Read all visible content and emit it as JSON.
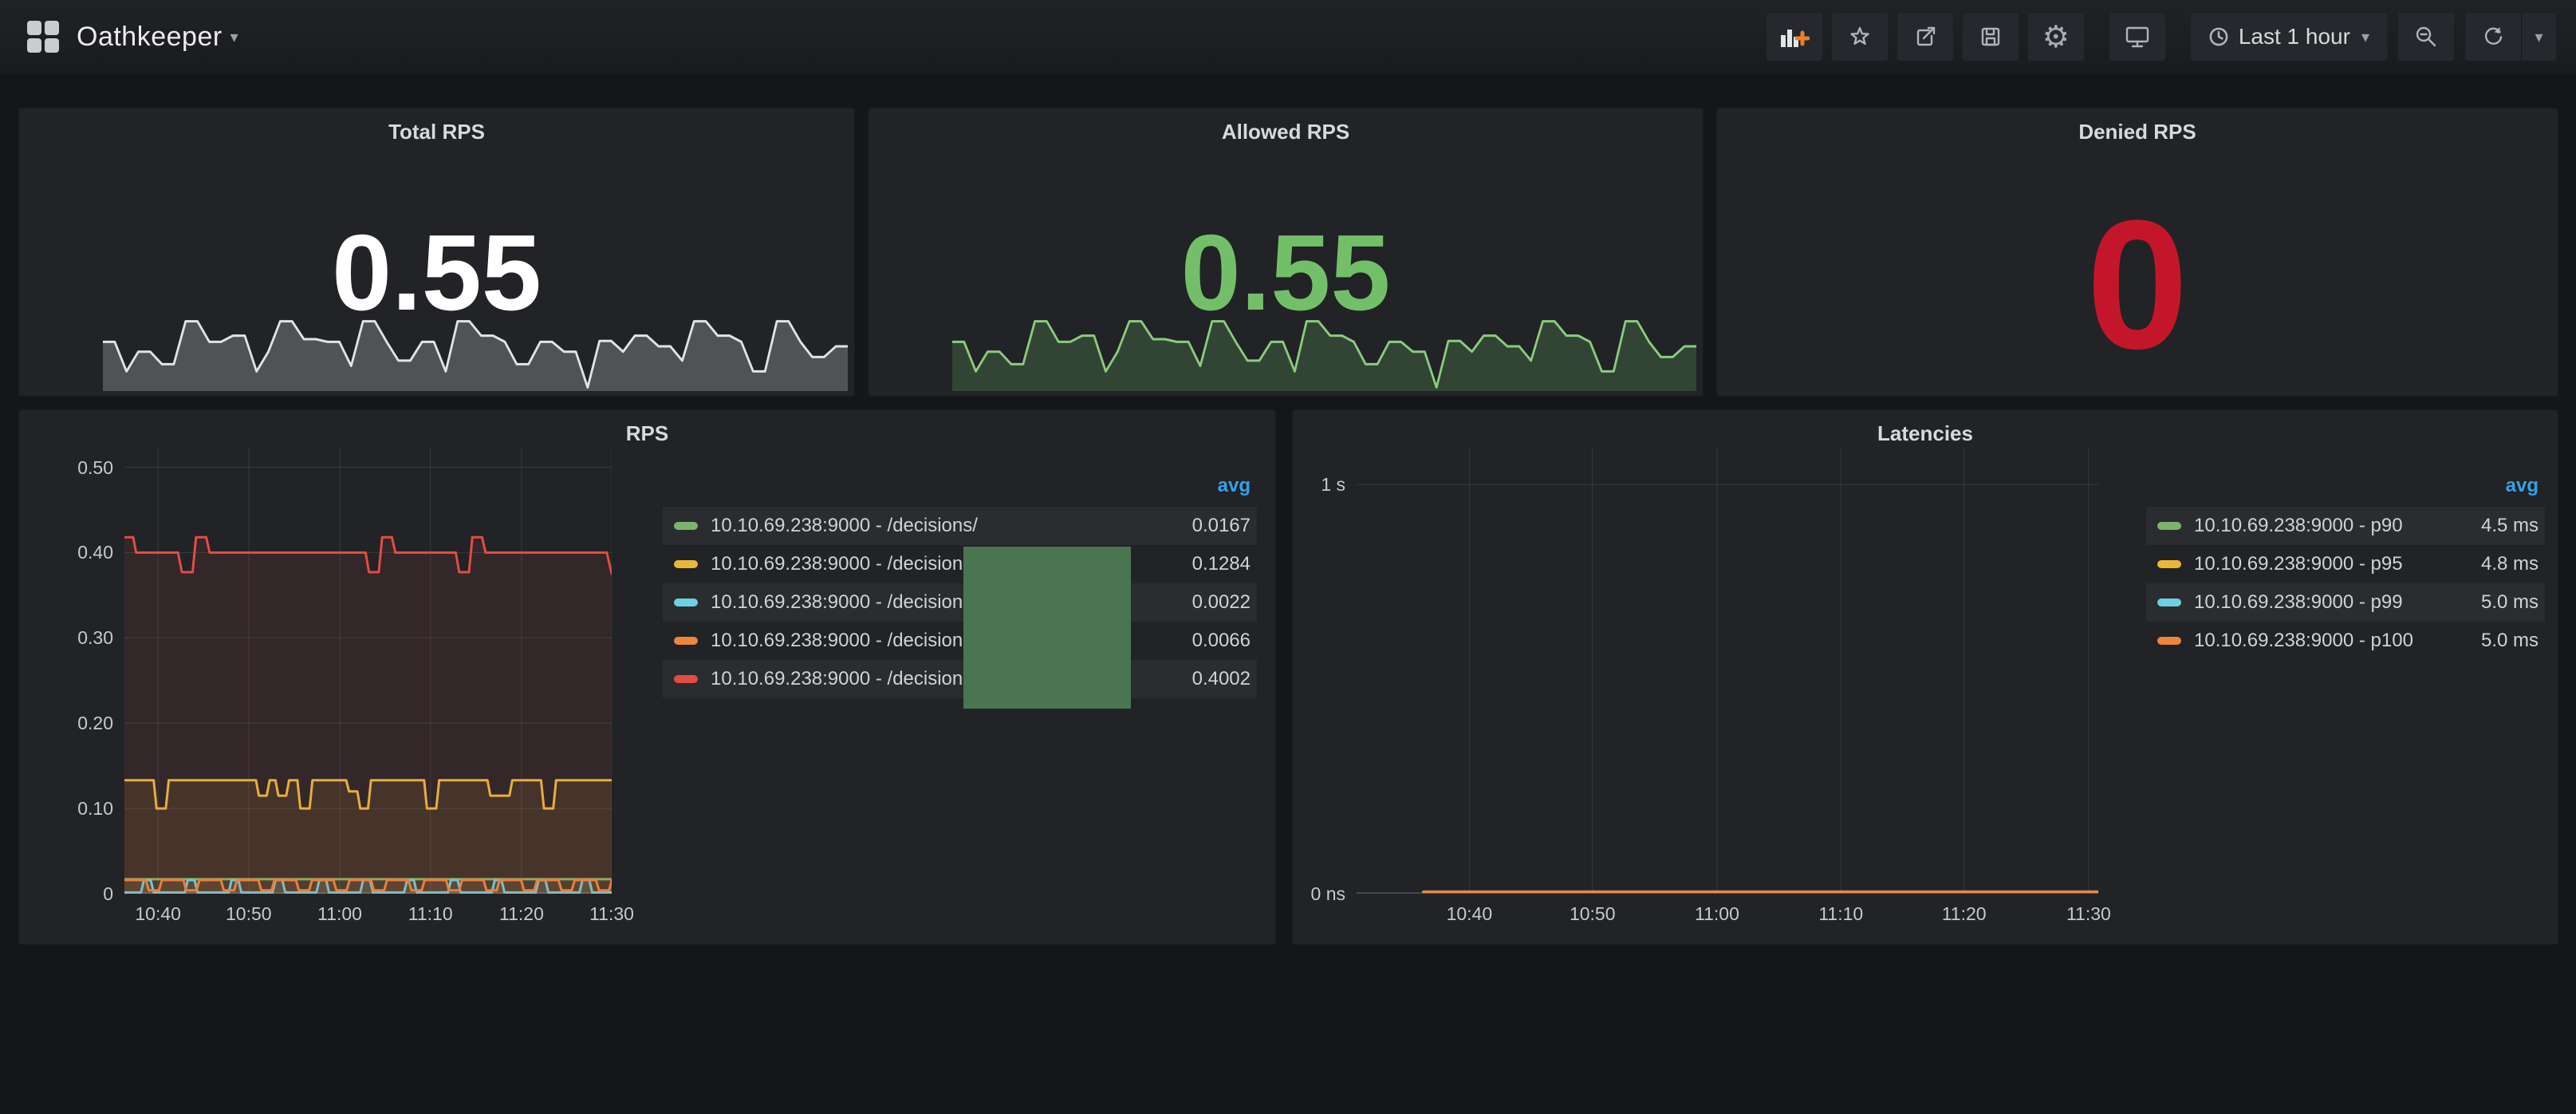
{
  "header": {
    "title": "Oathkeeper",
    "toolbar": {
      "icons": [
        "add-panel",
        "star",
        "share",
        "save",
        "settings",
        "tv-mode",
        "clock",
        "zoom-out",
        "refresh",
        "caret-down"
      ],
      "time_range_label": "Last 1 hour"
    }
  },
  "colors": {
    "page_bg": "#141619",
    "panel_bg": "#212327",
    "accent_blue": "#35a1e8",
    "stat_white": "#ffffff",
    "stat_green": "#73BF69",
    "stat_red": "#C4162A",
    "series_green": "#7EB26D",
    "series_yellow": "#EAB839",
    "series_cyan": "#6ED0E0",
    "series_orange": "#EF843C",
    "series_red": "#E24D42",
    "overlay_green": "#4a7550"
  },
  "panels": {
    "total_rps": {
      "title": "Total RPS",
      "value": "0.55",
      "color": "#ffffff"
    },
    "allowed_rps": {
      "title": "Allowed RPS",
      "value": "0.55",
      "color": "#73BF69"
    },
    "denied_rps": {
      "title": "Denied RPS",
      "value": "0",
      "color": "#C4162A"
    },
    "rps": {
      "title": "RPS",
      "legend_header": "avg"
    },
    "latencies": {
      "title": "Latencies",
      "legend_header": "avg"
    }
  },
  "chart_data": {
    "total_rps_spark": {
      "type": "area",
      "title": "Total RPS sparkline",
      "color": "#e2e3e4",
      "fill": "rgba(205,207,210,0.28)",
      "ylim": [
        0,
        1
      ],
      "values": [
        0.55,
        0.55,
        0.22,
        0.44,
        0.44,
        0.3,
        0.3,
        0.78,
        0.78,
        0.55,
        0.55,
        0.62,
        0.62,
        0.22,
        0.44,
        0.78,
        0.78,
        0.58,
        0.58,
        0.55,
        0.55,
        0.28,
        0.78,
        0.78,
        0.55,
        0.34,
        0.34,
        0.55,
        0.55,
        0.22,
        0.78,
        0.78,
        0.62,
        0.62,
        0.55,
        0.3,
        0.3,
        0.55,
        0.55,
        0.44,
        0.44,
        0.04,
        0.56,
        0.56,
        0.44,
        0.62,
        0.62,
        0.5,
        0.5,
        0.34,
        0.78,
        0.78,
        0.62,
        0.62,
        0.55,
        0.22,
        0.22,
        0.78,
        0.78,
        0.55,
        0.38,
        0.38,
        0.5,
        0.5
      ]
    },
    "allowed_rps_spark": {
      "type": "area",
      "title": "Allowed RPS sparkline",
      "color": "#8ccb7d",
      "fill": "rgba(115,191,105,0.22)",
      "ylim": [
        0,
        1
      ],
      "values": [
        0.55,
        0.55,
        0.22,
        0.44,
        0.44,
        0.3,
        0.3,
        0.78,
        0.78,
        0.55,
        0.55,
        0.62,
        0.62,
        0.22,
        0.44,
        0.78,
        0.78,
        0.58,
        0.58,
        0.55,
        0.55,
        0.28,
        0.78,
        0.78,
        0.55,
        0.34,
        0.34,
        0.55,
        0.55,
        0.22,
        0.78,
        0.78,
        0.62,
        0.62,
        0.55,
        0.3,
        0.3,
        0.55,
        0.55,
        0.44,
        0.44,
        0.04,
        0.56,
        0.56,
        0.44,
        0.62,
        0.62,
        0.5,
        0.5,
        0.34,
        0.78,
        0.78,
        0.62,
        0.62,
        0.55,
        0.22,
        0.22,
        0.78,
        0.78,
        0.55,
        0.38,
        0.38,
        0.5,
        0.5
      ]
    },
    "rps": {
      "type": "line",
      "title": "RPS",
      "ylim": [
        0,
        0.523
      ],
      "legend_position": "right",
      "grid": true,
      "yticks": [
        {
          "label": "0.50",
          "v": 0.5
        },
        {
          "label": "0.40",
          "v": 0.4
        },
        {
          "label": "0.30",
          "v": 0.3
        },
        {
          "label": "0.20",
          "v": 0.2
        },
        {
          "label": "0.10",
          "v": 0.1
        },
        {
          "label": "0",
          "v": 0
        }
      ],
      "xticks": [
        {
          "label": "10:40",
          "pct": 6.9
        },
        {
          "label": "10:50",
          "pct": 25.5
        },
        {
          "label": "11:00",
          "pct": 44.2
        },
        {
          "label": "11:10",
          "pct": 62.8
        },
        {
          "label": "11:20",
          "pct": 81.5
        },
        {
          "label": "11:30",
          "pct": 100
        }
      ],
      "series": [
        {
          "name": "10.10.69.238:9000 - /decisions/",
          "color": "#7EB26D",
          "avg": "0.0167",
          "fill": "rgba(126,178,109,0.10)",
          "points": [
            [
              0,
              0.017
            ],
            [
              1,
              0.017
            ]
          ]
        },
        {
          "name": "10.10.69.238:9000 - /decisions/",
          "color": "#EAB839",
          "avg": "0.1284",
          "fill": "rgba(234,184,57,0.10)",
          "points": [
            [
              0,
              0.133
            ],
            [
              0.06,
              0.133
            ],
            [
              0.066,
              0.1
            ],
            [
              0.085,
              0.1
            ],
            [
              0.091,
              0.133
            ],
            [
              0.27,
              0.133
            ],
            [
              0.276,
              0.115
            ],
            [
              0.292,
              0.115
            ],
            [
              0.298,
              0.133
            ],
            [
              0.31,
              0.133
            ],
            [
              0.316,
              0.115
            ],
            [
              0.332,
              0.115
            ],
            [
              0.338,
              0.133
            ],
            [
              0.355,
              0.133
            ],
            [
              0.361,
              0.1
            ],
            [
              0.38,
              0.1
            ],
            [
              0.386,
              0.133
            ],
            [
              0.455,
              0.133
            ],
            [
              0.461,
              0.12
            ],
            [
              0.478,
              0.12
            ],
            [
              0.484,
              0.1
            ],
            [
              0.5,
              0.1
            ],
            [
              0.506,
              0.133
            ],
            [
              0.615,
              0.133
            ],
            [
              0.621,
              0.1
            ],
            [
              0.64,
              0.1
            ],
            [
              0.646,
              0.133
            ],
            [
              0.745,
              0.133
            ],
            [
              0.751,
              0.115
            ],
            [
              0.79,
              0.115
            ],
            [
              0.796,
              0.133
            ],
            [
              0.855,
              0.133
            ],
            [
              0.861,
              0.1
            ],
            [
              0.88,
              0.1
            ],
            [
              0.886,
              0.133
            ],
            [
              1,
              0.133
            ]
          ]
        },
        {
          "name": "10.10.69.238:9000 - /decisions/",
          "color": "#6ED0E0",
          "avg": "0.0022",
          "fill": "rgba(110,208,224,0.10)",
          "points": [
            [
              0,
              0.0015
            ],
            [
              0.034,
              0.0015
            ],
            [
              0.04,
              0.016
            ],
            [
              0.054,
              0.016
            ],
            [
              0.06,
              0.0015
            ],
            [
              0.124,
              0.0015
            ],
            [
              0.13,
              0.016
            ],
            [
              0.144,
              0.016
            ],
            [
              0.15,
              0.0015
            ],
            [
              0.214,
              0.0015
            ],
            [
              0.22,
              0.016
            ],
            [
              0.234,
              0.016
            ],
            [
              0.24,
              0.0015
            ],
            [
              0.304,
              0.0015
            ],
            [
              0.31,
              0.016
            ],
            [
              0.324,
              0.016
            ],
            [
              0.33,
              0.0015
            ],
            [
              0.394,
              0.0015
            ],
            [
              0.4,
              0.016
            ],
            [
              0.414,
              0.016
            ],
            [
              0.42,
              0.0015
            ],
            [
              0.484,
              0.0015
            ],
            [
              0.49,
              0.016
            ],
            [
              0.504,
              0.016
            ],
            [
              0.51,
              0.0015
            ],
            [
              0.574,
              0.0015
            ],
            [
              0.58,
              0.016
            ],
            [
              0.594,
              0.016
            ],
            [
              0.6,
              0.0015
            ],
            [
              0.664,
              0.0015
            ],
            [
              0.67,
              0.016
            ],
            [
              0.684,
              0.016
            ],
            [
              0.69,
              0.0015
            ],
            [
              0.754,
              0.0015
            ],
            [
              0.76,
              0.016
            ],
            [
              0.774,
              0.016
            ],
            [
              0.78,
              0.0015
            ],
            [
              0.844,
              0.0015
            ],
            [
              0.85,
              0.016
            ],
            [
              0.864,
              0.016
            ],
            [
              0.87,
              0.0015
            ],
            [
              0.934,
              0.0015
            ],
            [
              0.94,
              0.016
            ],
            [
              0.954,
              0.016
            ],
            [
              0.96,
              0.0015
            ],
            [
              1,
              0.0015
            ]
          ]
        },
        {
          "name": "10.10.69.238:9000 - /decisions/",
          "color": "#EF843C",
          "avg": "0.0066",
          "fill": "rgba(239,132,60,0.10)",
          "points": [
            [
              0,
              0.016
            ],
            [
              0.044,
              0.016
            ],
            [
              0.05,
              0.004
            ],
            [
              0.071,
              0.004
            ],
            [
              0.077,
              0.016
            ],
            [
              0.121,
              0.016
            ],
            [
              0.127,
              0.004
            ],
            [
              0.148,
              0.004
            ],
            [
              0.154,
              0.016
            ],
            [
              0.198,
              0.016
            ],
            [
              0.204,
              0.004
            ],
            [
              0.225,
              0.004
            ],
            [
              0.231,
              0.016
            ],
            [
              0.275,
              0.016
            ],
            [
              0.281,
              0.004
            ],
            [
              0.302,
              0.004
            ],
            [
              0.308,
              0.016
            ],
            [
              0.352,
              0.016
            ],
            [
              0.358,
              0.004
            ],
            [
              0.379,
              0.004
            ],
            [
              0.385,
              0.016
            ],
            [
              0.429,
              0.016
            ],
            [
              0.435,
              0.004
            ],
            [
              0.456,
              0.004
            ],
            [
              0.462,
              0.016
            ],
            [
              0.506,
              0.016
            ],
            [
              0.512,
              0.004
            ],
            [
              0.533,
              0.004
            ],
            [
              0.539,
              0.016
            ],
            [
              0.583,
              0.016
            ],
            [
              0.589,
              0.004
            ],
            [
              0.61,
              0.004
            ],
            [
              0.616,
              0.016
            ],
            [
              0.66,
              0.016
            ],
            [
              0.666,
              0.004
            ],
            [
              0.687,
              0.004
            ],
            [
              0.693,
              0.016
            ],
            [
              0.737,
              0.016
            ],
            [
              0.743,
              0.004
            ],
            [
              0.764,
              0.004
            ],
            [
              0.77,
              0.016
            ],
            [
              0.814,
              0.016
            ],
            [
              0.82,
              0.004
            ],
            [
              0.841,
              0.004
            ],
            [
              0.847,
              0.016
            ],
            [
              0.891,
              0.016
            ],
            [
              0.897,
              0.004
            ],
            [
              0.918,
              0.004
            ],
            [
              0.924,
              0.016
            ],
            [
              0.968,
              0.016
            ],
            [
              0.974,
              0.004
            ],
            [
              0.995,
              0.004
            ],
            [
              1,
              0.016
            ]
          ]
        },
        {
          "name": "10.10.69.238:9000 - /decisions/",
          "color": "#E24D42",
          "avg": "0.4002",
          "fill": "rgba(226,77,66,0.10)",
          "points": [
            [
              0,
              0.418
            ],
            [
              0.018,
              0.418
            ],
            [
              0.024,
              0.4
            ],
            [
              0.11,
              0.4
            ],
            [
              0.118,
              0.377
            ],
            [
              0.14,
              0.377
            ],
            [
              0.147,
              0.418
            ],
            [
              0.168,
              0.418
            ],
            [
              0.175,
              0.4
            ],
            [
              0.495,
              0.4
            ],
            [
              0.502,
              0.377
            ],
            [
              0.522,
              0.377
            ],
            [
              0.529,
              0.418
            ],
            [
              0.549,
              0.418
            ],
            [
              0.556,
              0.4
            ],
            [
              0.68,
              0.4
            ],
            [
              0.687,
              0.377
            ],
            [
              0.707,
              0.377
            ],
            [
              0.714,
              0.418
            ],
            [
              0.734,
              0.418
            ],
            [
              0.741,
              0.4
            ],
            [
              0.99,
              0.4
            ],
            [
              1,
              0.375
            ]
          ]
        }
      ]
    },
    "latencies": {
      "type": "line",
      "title": "Latencies",
      "ylim": [
        0,
        1.09
      ],
      "legend_position": "right",
      "grid": true,
      "yticks": [
        {
          "label": "1 s",
          "v": 1.0
        },
        {
          "label": "0 ns",
          "v": 0
        }
      ],
      "xticks": [
        {
          "label": "10:40",
          "pct": 15.2
        },
        {
          "label": "10:50",
          "pct": 31.8
        },
        {
          "label": "11:00",
          "pct": 48.6
        },
        {
          "label": "11:10",
          "pct": 65.3
        },
        {
          "label": "11:20",
          "pct": 81.9
        },
        {
          "label": "11:30",
          "pct": 98.7
        }
      ],
      "series": [
        {
          "name": "10.10.69.238:9000 - p90",
          "color": "#7EB26D",
          "avg": "4.5 ms",
          "points": [
            [
              0.09,
              0.0045
            ],
            [
              1,
              0.0045
            ]
          ]
        },
        {
          "name": "10.10.69.238:9000 - p95",
          "color": "#EAB839",
          "avg": "4.8 ms",
          "points": [
            [
              0.09,
              0.0048
            ],
            [
              1,
              0.0048
            ]
          ]
        },
        {
          "name": "10.10.69.238:9000 - p99",
          "color": "#6ED0E0",
          "avg": "5.0 ms",
          "points": [
            [
              0.09,
              0.005
            ],
            [
              1,
              0.005
            ]
          ]
        },
        {
          "name": "10.10.69.238:9000 - p100",
          "color": "#EF843C",
          "avg": "5.0 ms",
          "points": [
            [
              0.09,
              0.005
            ],
            [
              1,
              0.005
            ]
          ]
        }
      ]
    }
  }
}
